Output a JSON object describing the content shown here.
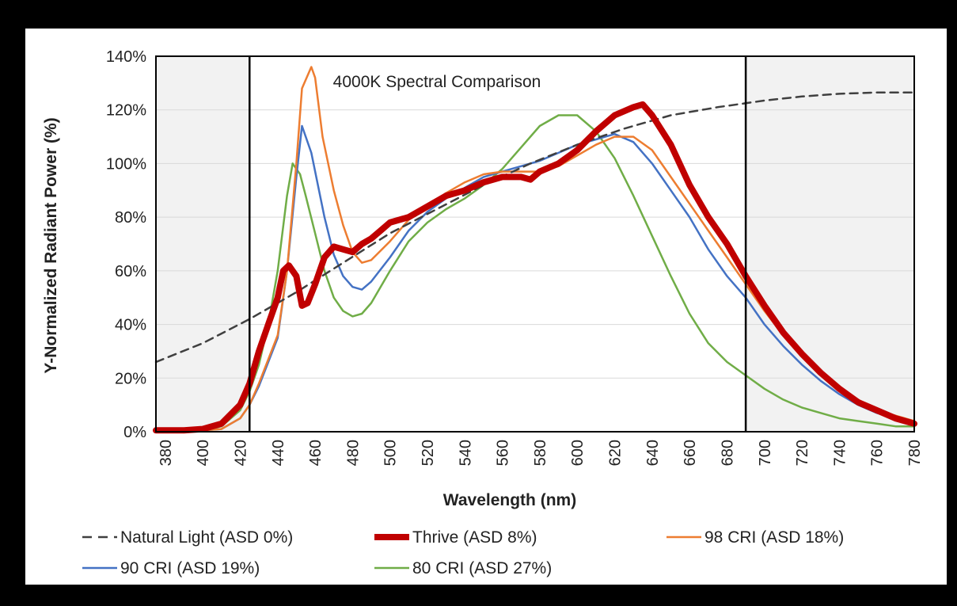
{
  "chart_data": {
    "type": "line",
    "title": "4000K Spectral Comparison",
    "xlabel": "Wavelength (nm)",
    "ylabel": "Y-Normalized Radiant Power (%)",
    "xlim": [
      375,
      780
    ],
    "ylim": [
      0,
      140
    ],
    "x_ticks": [
      "380",
      "400",
      "420",
      "440",
      "460",
      "480",
      "500",
      "520",
      "540",
      "560",
      "580",
      "600",
      "620",
      "640",
      "660",
      "680",
      "700",
      "720",
      "740",
      "760",
      "780"
    ],
    "y_ticks": [
      "0%",
      "20%",
      "40%",
      "60%",
      "80%",
      "100%",
      "120%",
      "140%"
    ],
    "visible_range_nm": [
      425,
      690
    ],
    "shaded_regions": [
      [
        375,
        425
      ],
      [
        690,
        780
      ]
    ],
    "series": [
      {
        "name": "Natural Light (ASD 0%)",
        "color": "#404040",
        "style": "dashed",
        "points": [
          [
            375,
            26
          ],
          [
            400,
            33
          ],
          [
            425,
            42
          ],
          [
            450,
            52
          ],
          [
            475,
            63
          ],
          [
            500,
            74
          ],
          [
            525,
            83
          ],
          [
            550,
            92
          ],
          [
            575,
            100
          ],
          [
            600,
            107
          ],
          [
            625,
            113
          ],
          [
            650,
            118
          ],
          [
            675,
            121
          ],
          [
            690,
            122.5
          ],
          [
            700,
            123.5
          ],
          [
            720,
            125
          ],
          [
            740,
            126
          ],
          [
            760,
            126.5
          ],
          [
            780,
            126.5
          ]
        ]
      },
      {
        "name": "Thrive (ASD 8%)",
        "color": "#c00000",
        "style": "thick",
        "points": [
          [
            375,
            0.5
          ],
          [
            390,
            0.5
          ],
          [
            400,
            1
          ],
          [
            410,
            3
          ],
          [
            420,
            10
          ],
          [
            425,
            18
          ],
          [
            430,
            30
          ],
          [
            435,
            40
          ],
          [
            440,
            50
          ],
          [
            443,
            60
          ],
          [
            446,
            62
          ],
          [
            450,
            58
          ],
          [
            453,
            47
          ],
          [
            456,
            48
          ],
          [
            460,
            55
          ],
          [
            465,
            65
          ],
          [
            470,
            69
          ],
          [
            475,
            68
          ],
          [
            480,
            67
          ],
          [
            485,
            70
          ],
          [
            490,
            72
          ],
          [
            495,
            75
          ],
          [
            500,
            78
          ],
          [
            510,
            80
          ],
          [
            520,
            84
          ],
          [
            530,
            88
          ],
          [
            540,
            90
          ],
          [
            550,
            93
          ],
          [
            560,
            95
          ],
          [
            570,
            95
          ],
          [
            575,
            94
          ],
          [
            580,
            97
          ],
          [
            590,
            100
          ],
          [
            600,
            105
          ],
          [
            610,
            112
          ],
          [
            620,
            118
          ],
          [
            630,
            121
          ],
          [
            635,
            122
          ],
          [
            640,
            118
          ],
          [
            650,
            107
          ],
          [
            660,
            92
          ],
          [
            670,
            80
          ],
          [
            680,
            70
          ],
          [
            690,
            58
          ],
          [
            700,
            47
          ],
          [
            710,
            37
          ],
          [
            720,
            29
          ],
          [
            730,
            22
          ],
          [
            740,
            16
          ],
          [
            750,
            11
          ],
          [
            760,
            8
          ],
          [
            770,
            5
          ],
          [
            780,
            3
          ]
        ]
      },
      {
        "name": "98 CRI (ASD 18%)",
        "color": "#ed7d31",
        "style": "solid",
        "points": [
          [
            375,
            0.5
          ],
          [
            400,
            0.5
          ],
          [
            410,
            1
          ],
          [
            420,
            5
          ],
          [
            425,
            10
          ],
          [
            430,
            18
          ],
          [
            440,
            36
          ],
          [
            445,
            60
          ],
          [
            450,
            100
          ],
          [
            453,
            128
          ],
          [
            458,
            136
          ],
          [
            460,
            132
          ],
          [
            464,
            110
          ],
          [
            470,
            90
          ],
          [
            475,
            77
          ],
          [
            480,
            67
          ],
          [
            485,
            63
          ],
          [
            490,
            64
          ],
          [
            500,
            71
          ],
          [
            510,
            79
          ],
          [
            520,
            84
          ],
          [
            530,
            89
          ],
          [
            540,
            93
          ],
          [
            550,
            96
          ],
          [
            560,
            97
          ],
          [
            570,
            97
          ],
          [
            580,
            97
          ],
          [
            590,
            99
          ],
          [
            600,
            103
          ],
          [
            610,
            107
          ],
          [
            620,
            110
          ],
          [
            630,
            110
          ],
          [
            640,
            105
          ],
          [
            650,
            95
          ],
          [
            660,
            85
          ],
          [
            670,
            75
          ],
          [
            680,
            65
          ],
          [
            690,
            55
          ],
          [
            700,
            45
          ],
          [
            710,
            36
          ],
          [
            720,
            28
          ],
          [
            730,
            21
          ],
          [
            740,
            16
          ],
          [
            750,
            12
          ],
          [
            760,
            8
          ],
          [
            770,
            6
          ],
          [
            780,
            4
          ]
        ]
      },
      {
        "name": "90 CRI (ASD 19%)",
        "color": "#4472c4",
        "style": "solid",
        "points": [
          [
            375,
            0.5
          ],
          [
            400,
            0.5
          ],
          [
            410,
            1
          ],
          [
            420,
            5
          ],
          [
            425,
            10
          ],
          [
            430,
            17
          ],
          [
            440,
            35
          ],
          [
            445,
            60
          ],
          [
            450,
            95
          ],
          [
            453,
            114
          ],
          [
            458,
            104
          ],
          [
            465,
            80
          ],
          [
            470,
            66
          ],
          [
            475,
            58
          ],
          [
            480,
            54
          ],
          [
            485,
            53
          ],
          [
            490,
            56
          ],
          [
            500,
            65
          ],
          [
            510,
            75
          ],
          [
            520,
            82
          ],
          [
            530,
            87
          ],
          [
            540,
            91
          ],
          [
            550,
            95
          ],
          [
            560,
            97
          ],
          [
            570,
            99
          ],
          [
            580,
            101
          ],
          [
            590,
            104
          ],
          [
            600,
            107
          ],
          [
            610,
            109
          ],
          [
            620,
            111
          ],
          [
            630,
            108
          ],
          [
            640,
            100
          ],
          [
            650,
            90
          ],
          [
            660,
            80
          ],
          [
            670,
            68
          ],
          [
            680,
            58
          ],
          [
            690,
            50
          ],
          [
            700,
            40
          ],
          [
            710,
            32
          ],
          [
            720,
            25
          ],
          [
            730,
            19
          ],
          [
            740,
            14
          ],
          [
            750,
            10
          ],
          [
            760,
            7
          ],
          [
            770,
            5
          ],
          [
            780,
            3
          ]
        ]
      },
      {
        "name": "80 CRI (ASD 27%)",
        "color": "#70ad47",
        "style": "solid",
        "points": [
          [
            375,
            0.5
          ],
          [
            400,
            0.5
          ],
          [
            410,
            2
          ],
          [
            420,
            8
          ],
          [
            425,
            15
          ],
          [
            430,
            25
          ],
          [
            435,
            40
          ],
          [
            440,
            60
          ],
          [
            445,
            88
          ],
          [
            448,
            100
          ],
          [
            452,
            96
          ],
          [
            455,
            88
          ],
          [
            460,
            74
          ],
          [
            465,
            60
          ],
          [
            470,
            50
          ],
          [
            475,
            45
          ],
          [
            480,
            43
          ],
          [
            485,
            44
          ],
          [
            490,
            48
          ],
          [
            500,
            60
          ],
          [
            510,
            71
          ],
          [
            520,
            78
          ],
          [
            530,
            83
          ],
          [
            540,
            87
          ],
          [
            550,
            92
          ],
          [
            560,
            98
          ],
          [
            570,
            106
          ],
          [
            580,
            114
          ],
          [
            590,
            118
          ],
          [
            600,
            118
          ],
          [
            610,
            112
          ],
          [
            620,
            102
          ],
          [
            630,
            88
          ],
          [
            640,
            73
          ],
          [
            650,
            58
          ],
          [
            660,
            44
          ],
          [
            670,
            33
          ],
          [
            680,
            26
          ],
          [
            690,
            21
          ],
          [
            700,
            16
          ],
          [
            710,
            12
          ],
          [
            720,
            9
          ],
          [
            730,
            7
          ],
          [
            740,
            5
          ],
          [
            750,
            4
          ],
          [
            760,
            3
          ],
          [
            770,
            2
          ],
          [
            780,
            2
          ]
        ]
      }
    ]
  }
}
